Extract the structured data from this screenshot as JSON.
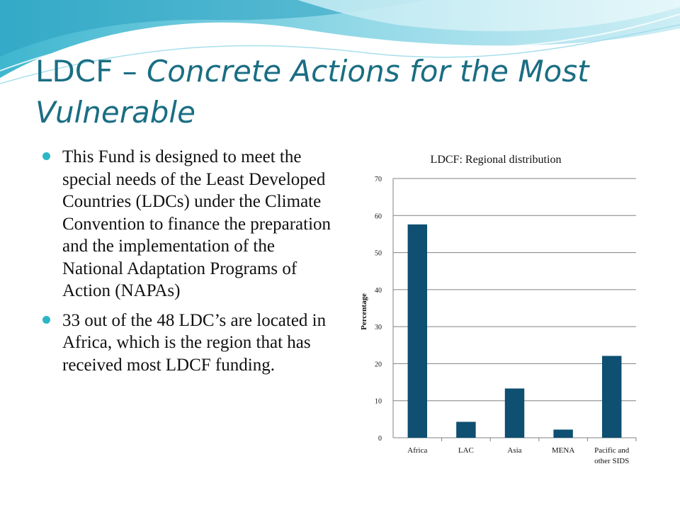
{
  "slide": {
    "title_plain": "LDCF – ",
    "title_italic": "Concrete Actions for the Most Vulnerable",
    "bullets": [
      "This Fund is designed to meet the special needs of the Least Developed Countries (LDCs) under the Climate Convention to finance the preparation and the implementation of the National Adaptation Programs of Action (NAPAs)",
      "33 out of the 48 LDC’s are located in Africa, which is the region that has received most LDCF funding."
    ]
  },
  "colors": {
    "title": "#1a6e83",
    "bullet": "#2bb7c4",
    "bar": "#0e4f72",
    "grid": "#808080"
  },
  "chart_data": {
    "type": "bar",
    "title": "LDCF: Regional distribution",
    "ylabel": "Percentage",
    "xlabel": "",
    "categories": [
      [
        "Africa"
      ],
      [
        "LAC"
      ],
      [
        "Asia"
      ],
      [
        "MENA"
      ],
      [
        "Pacific and",
        "other SIDS"
      ]
    ],
    "values": [
      57.6,
      4.3,
      13.3,
      2.2,
      22.1
    ],
    "ylim": [
      0,
      70
    ],
    "yticks": [
      0,
      10,
      20,
      30,
      40,
      50,
      60,
      70
    ],
    "grid": true,
    "legend": "none"
  }
}
